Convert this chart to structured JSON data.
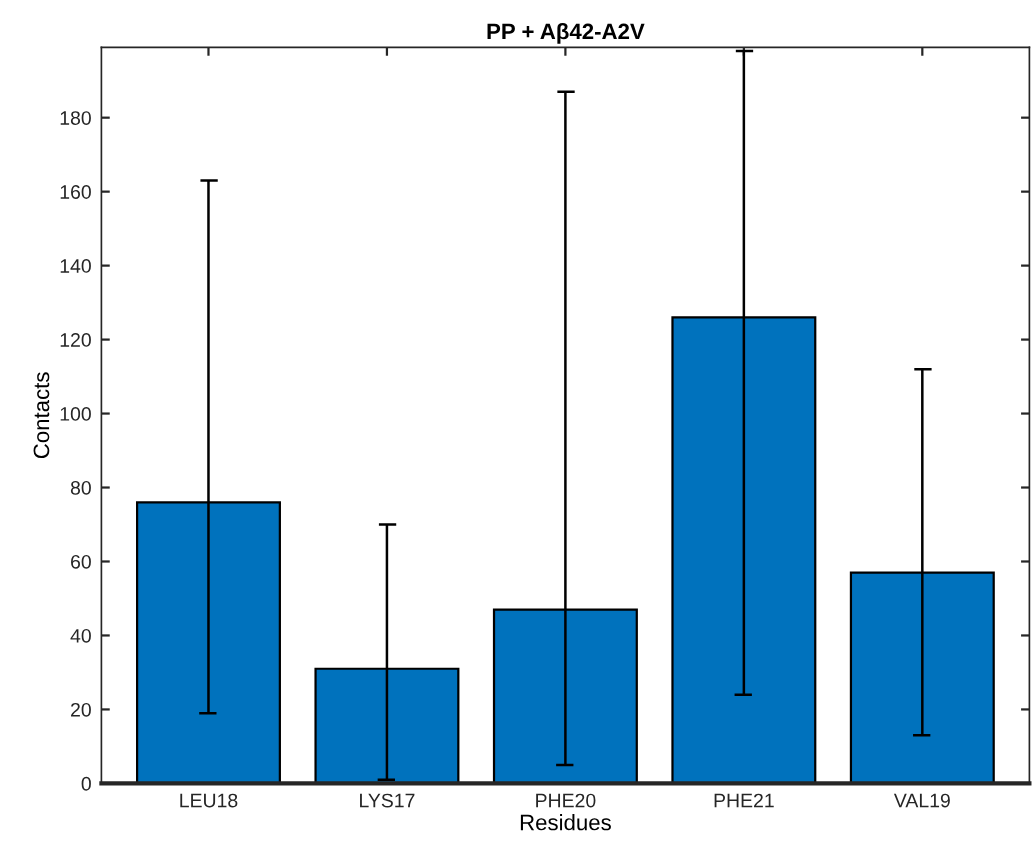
{
  "chart_data": {
    "type": "bar",
    "title": "PP + Aβ42-A2V",
    "xlabel": "Residues",
    "ylabel": "Contacts",
    "categories": [
      "LEU18",
      "LYS17",
      "PHE20",
      "PHE21",
      "VAL19"
    ],
    "values": [
      76,
      31,
      47,
      126,
      57
    ],
    "errors": [
      [
        19,
        163
      ],
      [
        1,
        70
      ],
      [
        5,
        187
      ],
      [
        24,
        198
      ],
      [
        13,
        112
      ]
    ],
    "color": "#0072bd",
    "ylim": [
      0,
      199
    ],
    "yticks": [
      0,
      20,
      40,
      60,
      80,
      100,
      120,
      140,
      160,
      180
    ],
    "grid": false,
    "legend": false
  }
}
